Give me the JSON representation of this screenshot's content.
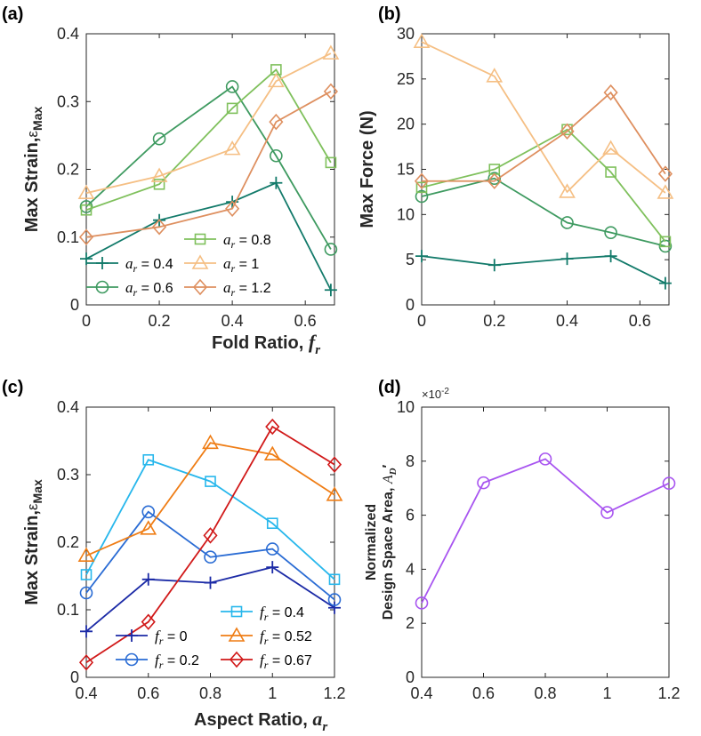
{
  "figure": {
    "shared_xlabel_top": {
      "text": "Fold Ratio, ",
      "symbol": "f",
      "sub": "r"
    },
    "shared_xlabel_bottom": {
      "text": "Aspect Ratio, ",
      "symbol": "a",
      "sub": "r"
    }
  },
  "chart_data": [
    {
      "id": "a",
      "panel_label": "(a)",
      "type": "line",
      "ylabel": "Max Strain,",
      "ylabel_symbol": "ε",
      "ylabel_sub": "Max",
      "xlim": [
        0,
        0.68
      ],
      "ylim": [
        0,
        0.4
      ],
      "xticks": [
        0,
        0.2,
        0.4,
        0.6
      ],
      "xtick_labels": [
        "0",
        "0.2",
        "0.4",
        "0.6"
      ],
      "yticks": [
        0,
        0.1,
        0.2,
        0.3,
        0.4
      ],
      "ytick_labels": [
        "0",
        "0.1",
        "0.2",
        "0.3",
        "0.4"
      ],
      "legend_location": "bottom-left",
      "series": [
        {
          "name": "a_r = 0.4",
          "sym": "a",
          "value": "0.4",
          "color": "#127a6a",
          "marker": "plus",
          "x": [
            0,
            0.2,
            0.4,
            0.52,
            0.67
          ],
          "y": [
            0.068,
            0.125,
            0.152,
            0.18,
            0.022
          ]
        },
        {
          "name": "a_r = 0.6",
          "sym": "a",
          "value": "0.6",
          "color": "#3e9a60",
          "marker": "circle",
          "x": [
            0,
            0.2,
            0.4,
            0.52,
            0.67
          ],
          "y": [
            0.145,
            0.245,
            0.322,
            0.22,
            0.082
          ]
        },
        {
          "name": "a_r = 0.8",
          "sym": "a",
          "value": "0.8",
          "color": "#7fc05c",
          "marker": "square",
          "x": [
            0,
            0.2,
            0.4,
            0.52,
            0.67
          ],
          "y": [
            0.14,
            0.178,
            0.29,
            0.347,
            0.21
          ]
        },
        {
          "name": "a_r = 1",
          "sym": "a",
          "value": "1",
          "color": "#f5bf84",
          "marker": "triangle",
          "x": [
            0,
            0.2,
            0.4,
            0.52,
            0.67
          ],
          "y": [
            0.165,
            0.19,
            0.23,
            0.33,
            0.371
          ]
        },
        {
          "name": "a_r = 1.2",
          "sym": "a",
          "value": "1.2",
          "color": "#de8f5f",
          "marker": "diamond",
          "x": [
            0,
            0.2,
            0.4,
            0.52,
            0.67
          ],
          "y": [
            0.1,
            0.115,
            0.142,
            0.27,
            0.315
          ]
        }
      ]
    },
    {
      "id": "b",
      "panel_label": "(b)",
      "type": "line",
      "ylabel": "Max Force (N)",
      "xlim": [
        0,
        0.68
      ],
      "ylim": [
        0,
        30
      ],
      "xticks": [
        0,
        0.2,
        0.4,
        0.6
      ],
      "xtick_labels": [
        "0",
        "0.2",
        "0.4",
        "0.6"
      ],
      "yticks": [
        0,
        5,
        10,
        15,
        20,
        25,
        30
      ],
      "ytick_labels": [
        "0",
        "5",
        "10",
        "15",
        "20",
        "25",
        "30"
      ],
      "series": [
        {
          "name": "a_r = 0.4",
          "color": "#127a6a",
          "marker": "plus",
          "x": [
            0,
            0.2,
            0.4,
            0.52,
            0.67
          ],
          "y": [
            5.4,
            4.4,
            5.1,
            5.4,
            2.4
          ]
        },
        {
          "name": "a_r = 0.6",
          "color": "#3e9a60",
          "marker": "circle",
          "x": [
            0,
            0.2,
            0.4,
            0.52,
            0.67
          ],
          "y": [
            12.0,
            14.0,
            9.1,
            8.0,
            6.5
          ]
        },
        {
          "name": "a_r = 0.8",
          "color": "#7fc05c",
          "marker": "square",
          "x": [
            0,
            0.2,
            0.4,
            0.52,
            0.67
          ],
          "y": [
            13.0,
            15.0,
            19.4,
            14.7,
            7.0
          ]
        },
        {
          "name": "a_r = 1",
          "color": "#f5bf84",
          "marker": "triangle",
          "x": [
            0,
            0.2,
            0.4,
            0.52,
            0.67
          ],
          "y": [
            29.1,
            25.3,
            12.5,
            17.3,
            12.4
          ]
        },
        {
          "name": "a_r = 1.2",
          "color": "#de8f5f",
          "marker": "diamond",
          "x": [
            0,
            0.2,
            0.4,
            0.52,
            0.67
          ],
          "y": [
            13.7,
            13.7,
            19.2,
            23.5,
            14.5
          ]
        }
      ]
    },
    {
      "id": "c",
      "panel_label": "(c)",
      "type": "line",
      "ylabel": "Max Strain,",
      "ylabel_symbol": "ε",
      "ylabel_sub": "Max",
      "xlim": [
        0.4,
        1.2
      ],
      "ylim": [
        0,
        0.4
      ],
      "xticks": [
        0.4,
        0.6,
        0.8,
        1,
        1.2
      ],
      "xtick_labels": [
        "0.4",
        "0.6",
        "0.8",
        "1",
        "1.2"
      ],
      "yticks": [
        0,
        0.1,
        0.2,
        0.3,
        0.4
      ],
      "ytick_labels": [
        "0",
        "0.1",
        "0.2",
        "0.3",
        "0.4"
      ],
      "legend_location": "bottom-right",
      "series": [
        {
          "name": "f_r = 0",
          "sym": "f",
          "value": "0",
          "color": "#1b2aa6",
          "marker": "plus",
          "x": [
            0.4,
            0.6,
            0.8,
            1.0,
            1.2
          ],
          "y": [
            0.068,
            0.145,
            0.14,
            0.163,
            0.103
          ]
        },
        {
          "name": "f_r = 0.2",
          "sym": "f",
          "value": "0.2",
          "color": "#2a6cd4",
          "marker": "circle",
          "x": [
            0.4,
            0.6,
            0.8,
            1.0,
            1.2
          ],
          "y": [
            0.125,
            0.245,
            0.178,
            0.19,
            0.115
          ]
        },
        {
          "name": "f_r = 0.4",
          "sym": "f",
          "value": "0.4",
          "color": "#27b7ec",
          "marker": "square",
          "x": [
            0.4,
            0.6,
            0.8,
            1.0,
            1.2
          ],
          "y": [
            0.152,
            0.322,
            0.29,
            0.228,
            0.145
          ]
        },
        {
          "name": "f_r = 0.52",
          "sym": "f",
          "value": "0.52",
          "color": "#ef7d15",
          "marker": "triangle",
          "x": [
            0.4,
            0.6,
            0.8,
            1.0,
            1.2
          ],
          "y": [
            0.18,
            0.22,
            0.347,
            0.33,
            0.27
          ]
        },
        {
          "name": "f_r = 0.67",
          "sym": "f",
          "value": "0.67",
          "color": "#d11919",
          "marker": "diamond",
          "x": [
            0.4,
            0.6,
            0.8,
            1.0,
            1.2
          ],
          "y": [
            0.022,
            0.082,
            0.21,
            0.371,
            0.315
          ]
        }
      ]
    },
    {
      "id": "d",
      "panel_label": "(d)",
      "type": "line",
      "ylabel_line1": "Normalized",
      "ylabel_line2": "Design Space Area, ",
      "ylabel_symbol": "A",
      "ylabel_sub": "D",
      "ylabel_prime": "′",
      "exponent_label": "×10",
      "exponent_power": "-2",
      "xlim": [
        0.4,
        1.2
      ],
      "ylim": [
        0,
        10
      ],
      "xticks": [
        0.4,
        0.6,
        0.8,
        1,
        1.2
      ],
      "xtick_labels": [
        "0.4",
        "0.6",
        "0.8",
        "1",
        "1.2"
      ],
      "yticks": [
        0,
        2,
        4,
        6,
        8,
        10
      ],
      "ytick_labels": [
        "0",
        "2",
        "4",
        "6",
        "8",
        "10"
      ],
      "series": [
        {
          "name": "design space area",
          "color": "#a855f0",
          "marker": "circle",
          "x": [
            0.4,
            0.6,
            0.8,
            1.0,
            1.2
          ],
          "y": [
            2.75,
            7.2,
            8.08,
            6.1,
            7.18
          ]
        }
      ]
    }
  ]
}
